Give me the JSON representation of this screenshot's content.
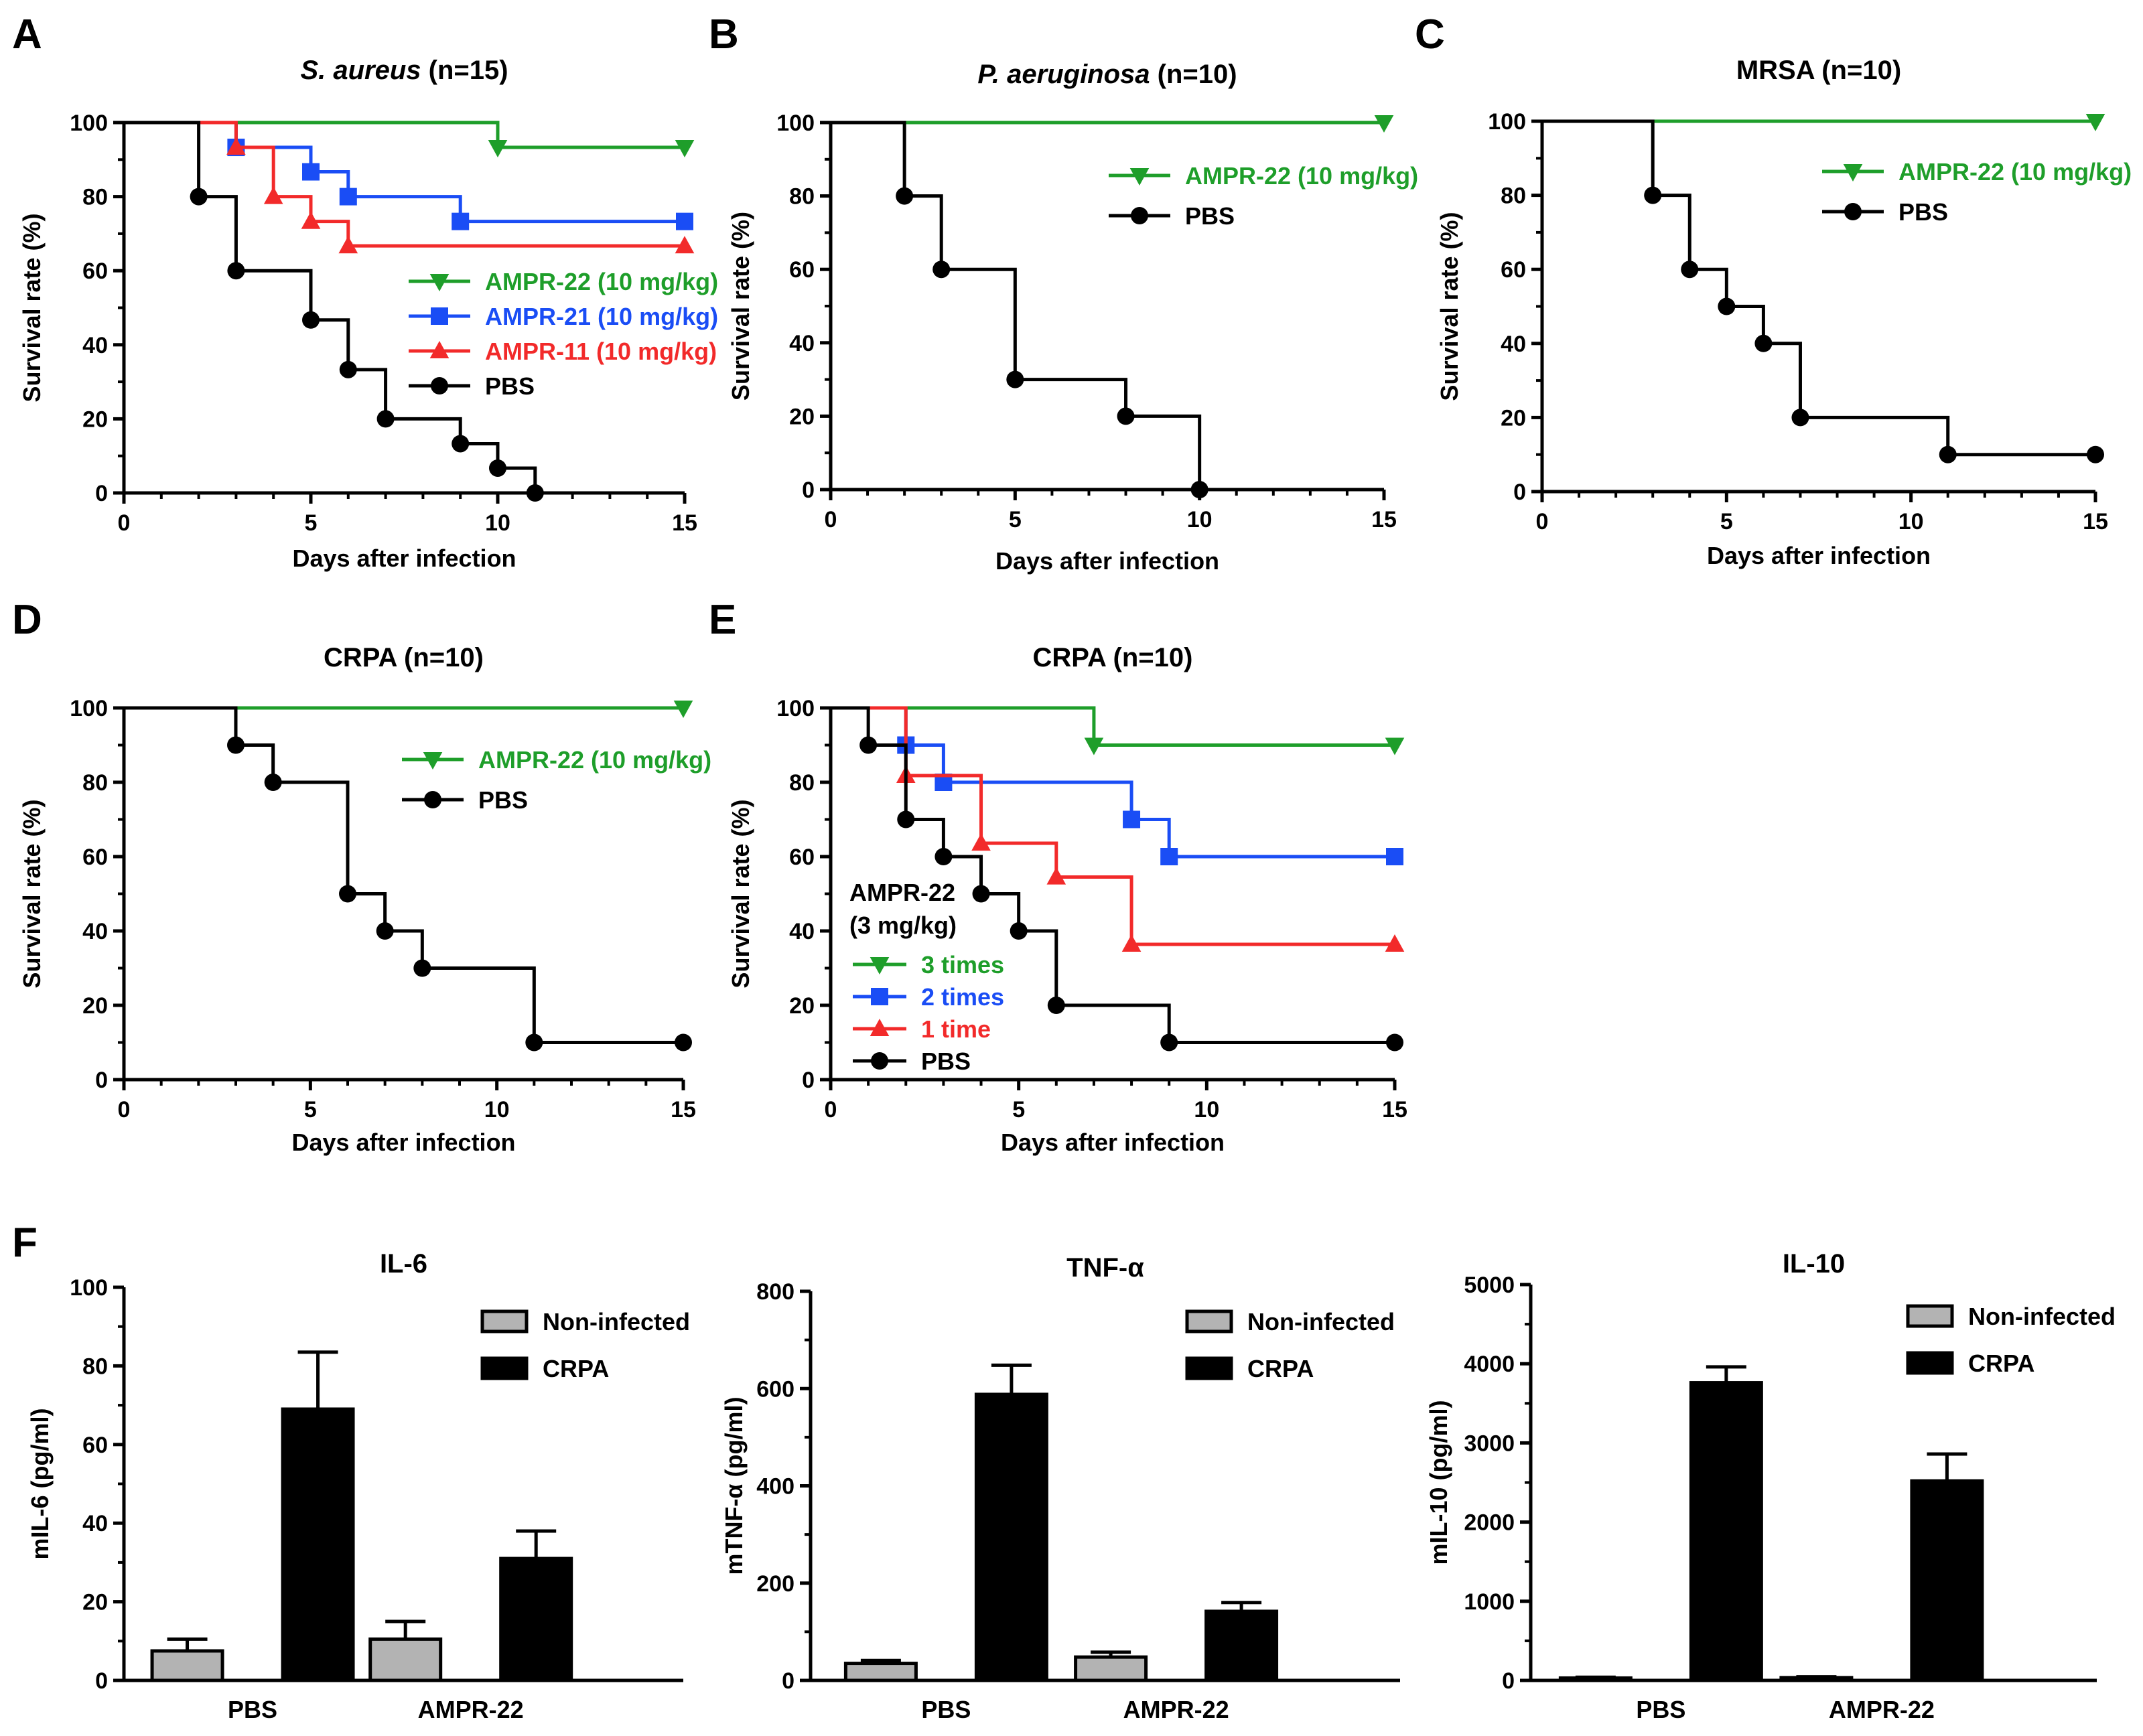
{
  "colors": {
    "green": "#1e9e2a",
    "blue": "#1a4df5",
    "red": "#f22a2a",
    "black": "#000000",
    "gray": "#b3b3b3"
  },
  "chart_data": [
    {
      "id": "A",
      "panel": "A",
      "type": "line",
      "subtype": "survival-step",
      "title_italic": "S. aureus",
      "title_rest": " (n=15)",
      "xlabel": "Days after infection",
      "ylabel": "Survival rate (%)",
      "xlim": [
        0,
        15
      ],
      "ylim": [
        0,
        100
      ],
      "xticks": [
        0,
        5,
        10,
        15
      ],
      "yticks": [
        0,
        20,
        40,
        60,
        80,
        100
      ],
      "legend_position": "middle-right",
      "series": [
        {
          "name": "AMPR-22 (10 mg/kg)",
          "color": "#1e9e2a",
          "marker": "triangle-down",
          "x": [
            0,
            10,
            15
          ],
          "y": [
            100,
            93.3,
            93.3
          ],
          "markers": [
            [
              10,
              93.3
            ],
            [
              15,
              93.3
            ]
          ]
        },
        {
          "name": "AMPR-21 (10 mg/kg)",
          "color": "#1a4df5",
          "marker": "square",
          "x": [
            0,
            3,
            5,
            6,
            9,
            15
          ],
          "y": [
            100,
            93.3,
            86.7,
            80,
            73.3,
            73.3
          ],
          "markers": [
            [
              3,
              93.3
            ],
            [
              5,
              86.7
            ],
            [
              6,
              80
            ],
            [
              9,
              73.3
            ],
            [
              15,
              73.3
            ]
          ]
        },
        {
          "name": "AMPR-11 (10 mg/kg)",
          "color": "#f22a2a",
          "marker": "triangle-up",
          "x": [
            0,
            3,
            4,
            5,
            6,
            15
          ],
          "y": [
            100,
            93.3,
            80,
            73.3,
            66.7,
            66.7
          ],
          "markers": [
            [
              3,
              93.3
            ],
            [
              4,
              80
            ],
            [
              5,
              73.3
            ],
            [
              6,
              66.7
            ],
            [
              15,
              66.7
            ]
          ]
        },
        {
          "name": "PBS",
          "color": "#000000",
          "marker": "circle",
          "x": [
            0,
            2,
            3,
            5,
            6,
            7,
            9,
            10,
            11
          ],
          "y": [
            100,
            80,
            60,
            46.7,
            33.3,
            20,
            13.3,
            6.7,
            0
          ],
          "markers": [
            [
              2,
              80
            ],
            [
              3,
              60
            ],
            [
              5,
              46.7
            ],
            [
              6,
              33.3
            ],
            [
              7,
              20
            ],
            [
              9,
              13.3
            ],
            [
              10,
              6.7
            ],
            [
              11,
              0
            ]
          ]
        }
      ]
    },
    {
      "id": "B",
      "panel": "B",
      "type": "line",
      "subtype": "survival-step",
      "title_italic": "P. aeruginosa",
      "title_rest": " (n=10)",
      "xlabel": "Days after infection",
      "ylabel": "Survival rate (%)",
      "xlim": [
        0,
        15
      ],
      "ylim": [
        0,
        100
      ],
      "xticks": [
        0,
        5,
        10,
        15
      ],
      "yticks": [
        0,
        20,
        40,
        60,
        80,
        100
      ],
      "legend_position": "top-right",
      "series": [
        {
          "name": "AMPR-22 (10 mg/kg)",
          "color": "#1e9e2a",
          "marker": "triangle-down",
          "x": [
            0,
            15
          ],
          "y": [
            100,
            100
          ],
          "markers": [
            [
              15,
              100
            ]
          ]
        },
        {
          "name": "PBS",
          "color": "#000000",
          "marker": "circle",
          "x": [
            0,
            2,
            3,
            5,
            8,
            10
          ],
          "y": [
            100,
            80,
            60,
            30,
            20,
            0
          ],
          "markers": [
            [
              2,
              80
            ],
            [
              3,
              60
            ],
            [
              5,
              30
            ],
            [
              8,
              20
            ],
            [
              10,
              0
            ]
          ]
        }
      ]
    },
    {
      "id": "C",
      "panel": "C",
      "type": "line",
      "subtype": "survival-step",
      "title_italic": "",
      "title_rest": "MRSA (n=10)",
      "xlabel": "Days after infection",
      "ylabel": "Survival rate (%)",
      "xlim": [
        0,
        15
      ],
      "ylim": [
        0,
        100
      ],
      "xticks": [
        0,
        5,
        10,
        15
      ],
      "yticks": [
        0,
        20,
        40,
        60,
        80,
        100
      ],
      "legend_position": "top-right",
      "series": [
        {
          "name": "AMPR-22 (10 mg/kg)",
          "color": "#1e9e2a",
          "marker": "triangle-down",
          "x": [
            0,
            15
          ],
          "y": [
            100,
            100
          ],
          "markers": [
            [
              15,
              100
            ]
          ]
        },
        {
          "name": "PBS",
          "color": "#000000",
          "marker": "circle",
          "x": [
            0,
            3,
            4,
            5,
            6,
            7,
            11,
            15
          ],
          "y": [
            100,
            80,
            60,
            50,
            40,
            20,
            10,
            10
          ],
          "markers": [
            [
              3,
              80
            ],
            [
              4,
              60
            ],
            [
              5,
              50
            ],
            [
              6,
              40
            ],
            [
              7,
              20
            ],
            [
              11,
              10
            ],
            [
              15,
              10
            ]
          ]
        }
      ]
    },
    {
      "id": "D",
      "panel": "D",
      "type": "line",
      "subtype": "survival-step",
      "title_italic": "",
      "title_rest": "CRPA (n=10)",
      "xlabel": "Days after infection",
      "ylabel": "Survival rate (%)",
      "xlim": [
        0,
        15
      ],
      "ylim": [
        0,
        100
      ],
      "xticks": [
        0,
        5,
        10,
        15
      ],
      "yticks": [
        0,
        20,
        40,
        60,
        80,
        100
      ],
      "legend_position": "top-right",
      "series": [
        {
          "name": "AMPR-22 (10 mg/kg)",
          "color": "#1e9e2a",
          "marker": "triangle-down",
          "x": [
            0,
            15
          ],
          "y": [
            100,
            100
          ],
          "markers": [
            [
              15,
              100
            ]
          ]
        },
        {
          "name": "PBS",
          "color": "#000000",
          "marker": "circle",
          "x": [
            0,
            3,
            4,
            6,
            7,
            8,
            11,
            15
          ],
          "y": [
            100,
            90,
            80,
            50,
            40,
            30,
            10,
            10
          ],
          "markers": [
            [
              3,
              90
            ],
            [
              4,
              80
            ],
            [
              6,
              50
            ],
            [
              7,
              40
            ],
            [
              8,
              30
            ],
            [
              11,
              10
            ],
            [
              15,
              10
            ]
          ]
        }
      ]
    },
    {
      "id": "E",
      "panel": "E",
      "type": "line",
      "subtype": "survival-step",
      "title_italic": "",
      "title_rest": "CRPA (n=10)",
      "xlabel": "Days after infection",
      "ylabel": "Survival rate (%)",
      "xlim": [
        0,
        15
      ],
      "ylim": [
        0,
        100
      ],
      "xticks": [
        0,
        5,
        10,
        15
      ],
      "yticks": [
        0,
        20,
        40,
        60,
        80,
        100
      ],
      "legend_position": "bottom-left",
      "legend_header": [
        "AMPR-22",
        "(3 mg/kg)"
      ],
      "series": [
        {
          "name": "3 times",
          "color": "#1e9e2a",
          "marker": "triangle-down",
          "x": [
            0,
            7,
            15
          ],
          "y": [
            100,
            90,
            90
          ],
          "markers": [
            [
              7,
              90
            ],
            [
              15,
              90
            ]
          ]
        },
        {
          "name": "2 times",
          "color": "#1a4df5",
          "marker": "square",
          "x": [
            0,
            2,
            3,
            8,
            9,
            15
          ],
          "y": [
            100,
            90,
            80,
            70,
            60,
            60
          ],
          "markers": [
            [
              2,
              90
            ],
            [
              3,
              80
            ],
            [
              8,
              70
            ],
            [
              9,
              60
            ],
            [
              15,
              60
            ]
          ]
        },
        {
          "name": "1 time",
          "color": "#f22a2a",
          "marker": "triangle-up",
          "x": [
            0,
            2,
            4,
            6,
            8,
            15
          ],
          "y": [
            100,
            81.8,
            63.6,
            54.5,
            36.4,
            36.4
          ],
          "markers": [
            [
              2,
              81.8
            ],
            [
              4,
              63.6
            ],
            [
              6,
              54.5
            ],
            [
              8,
              36.4
            ],
            [
              15,
              36.4
            ]
          ]
        },
        {
          "name": "PBS",
          "color": "#000000",
          "marker": "circle",
          "x": [
            0,
            1,
            2,
            3,
            4,
            5,
            6,
            9,
            15
          ],
          "y": [
            100,
            90,
            70,
            60,
            50,
            40,
            20,
            10,
            10
          ],
          "markers": [
            [
              1,
              90
            ],
            [
              2,
              70
            ],
            [
              3,
              60
            ],
            [
              4,
              50
            ],
            [
              5,
              40
            ],
            [
              6,
              20
            ],
            [
              9,
              10
            ],
            [
              15,
              10
            ]
          ]
        }
      ]
    },
    {
      "id": "F1",
      "panel": "F",
      "type": "bar",
      "title": "IL-6",
      "ylabel": "mIL-6 (pg/ml)",
      "categories": [
        "PBS",
        "AMPR-22"
      ],
      "ylim": [
        0,
        100
      ],
      "yticks": [
        0,
        20,
        40,
        60,
        80,
        100
      ],
      "legend_position": "top-right",
      "series": [
        {
          "name": "Non-infected",
          "color": "#b3b3b3",
          "values": [
            7.5,
            10.5
          ],
          "errors": [
            3,
            4.5
          ]
        },
        {
          "name": "CRPA",
          "color": "#000000",
          "values": [
            69,
            31
          ],
          "errors": [
            14.5,
            7
          ]
        }
      ]
    },
    {
      "id": "F2",
      "panel": "",
      "type": "bar",
      "title": "TNF-α",
      "ylabel": "mTNF-α (pg/ml)",
      "categories": [
        "PBS",
        "AMPR-22"
      ],
      "ylim": [
        0,
        800
      ],
      "yticks": [
        0,
        200,
        400,
        600,
        800
      ],
      "legend_position": "top-right",
      "series": [
        {
          "name": "Non-infected",
          "color": "#b3b3b3",
          "values": [
            35,
            48
          ],
          "errors": [
            6,
            10
          ]
        },
        {
          "name": "CRPA",
          "color": "#000000",
          "values": [
            588,
            142
          ],
          "errors": [
            60,
            18
          ]
        }
      ]
    },
    {
      "id": "F3",
      "panel": "",
      "type": "bar",
      "title": "IL-10",
      "ylabel": "mIL-10 (pg/ml)",
      "categories": [
        "PBS",
        "AMPR-22"
      ],
      "ylim": [
        0,
        5000
      ],
      "yticks": [
        0,
        1000,
        2000,
        3000,
        4000,
        5000
      ],
      "legend_position": "top-right",
      "series": [
        {
          "name": "Non-infected",
          "color": "#b3b3b3",
          "values": [
            30,
            35
          ],
          "errors": [
            10,
            10
          ]
        },
        {
          "name": "CRPA",
          "color": "#000000",
          "values": [
            3760,
            2520
          ],
          "errors": [
            200,
            340
          ]
        }
      ]
    }
  ]
}
